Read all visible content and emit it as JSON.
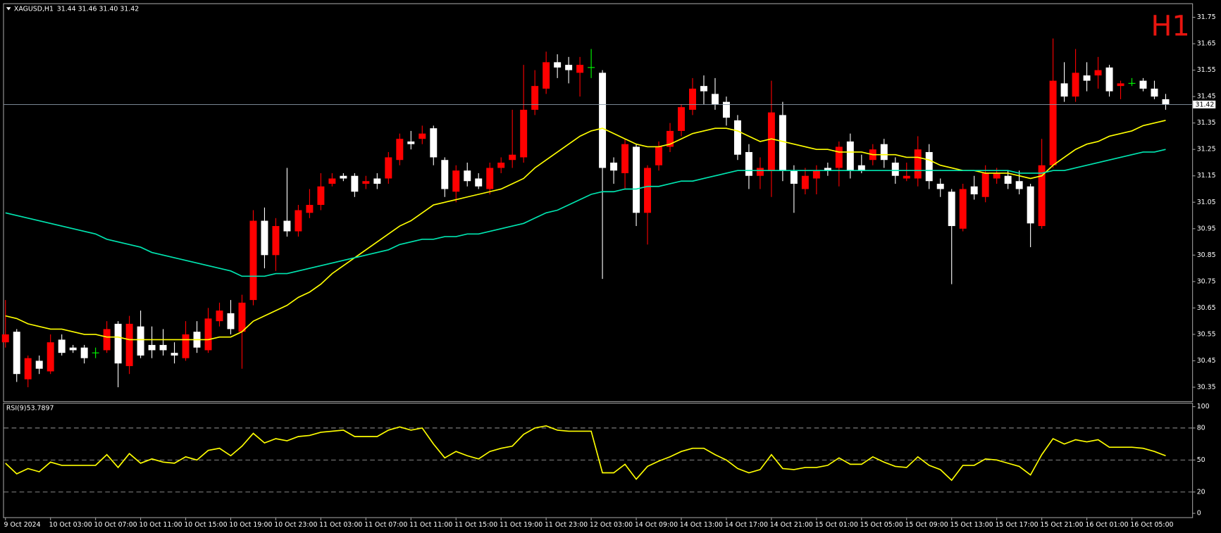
{
  "chart_data": [
    {
      "type": "candlestick",
      "title": "XAGUSD,H1",
      "subtitle": "31.44 31.46 31.40 31.42",
      "annotation": "H1",
      "categories": [
        "9 Oct 2024",
        null,
        null,
        null,
        "10 Oct 03:00",
        null,
        null,
        null,
        "10 Oct 07:00",
        null,
        null,
        null,
        "10 Oct 11:00",
        null,
        null,
        null,
        "10 Oct 15:00",
        null,
        null,
        null,
        "10 Oct 19:00",
        null,
        null,
        null,
        "10 Oct 23:00",
        null,
        null,
        null,
        "11 Oct 03:00",
        null,
        null,
        null,
        "11 Oct 07:00",
        null,
        null,
        null,
        "11 Oct 11:00",
        null,
        null,
        null,
        "11 Oct 15:00",
        null,
        null,
        null,
        "11 Oct 19:00",
        null,
        null,
        null,
        "11 Oct 23:00",
        null,
        null,
        null,
        "12 Oct 03:00",
        null,
        null,
        null,
        "14 Oct 09:00",
        null,
        null,
        null,
        "14 Oct 13:00",
        null,
        null,
        null,
        "14 Oct 17:00",
        null,
        null,
        null,
        "14 Oct 21:00",
        null,
        null,
        null,
        "15 Oct 01:00",
        null,
        null,
        null,
        "15 Oct 05:00",
        null,
        null,
        null,
        "15 Oct 09:00",
        null,
        null,
        null,
        "15 Oct 13:00",
        null,
        null,
        null,
        "15 Oct 17:00",
        null,
        null,
        null,
        "15 Oct 21:00",
        null,
        null,
        null,
        "16 Oct 01:00",
        null,
        null,
        null,
        "16 Oct 05:00",
        null,
        null,
        null
      ],
      "open": [
        30.52,
        30.56,
        30.38,
        30.45,
        30.41,
        30.53,
        30.5,
        30.5,
        30.48,
        30.49,
        30.59,
        30.43,
        30.58,
        30.51,
        30.51,
        30.48,
        30.46,
        30.56,
        30.49,
        30.6,
        30.63,
        30.56,
        30.68,
        30.98,
        30.85,
        30.98,
        30.94,
        31.01,
        31.04,
        31.12,
        31.15,
        31.15,
        31.12,
        31.14,
        31.14,
        31.21,
        31.28,
        31.29,
        31.33,
        31.21,
        31.09,
        31.17,
        31.14,
        31.1,
        31.18,
        31.21,
        31.22,
        31.4,
        31.48,
        31.58,
        31.57,
        31.54,
        31.56,
        31.54,
        31.2,
        31.16,
        31.26,
        31.01,
        31.19,
        31.26,
        31.32,
        31.4,
        31.49,
        31.46,
        31.43,
        31.36,
        31.24,
        31.15,
        31.17,
        31.38,
        31.17,
        31.1,
        31.14,
        31.18,
        31.18,
        31.28,
        31.19,
        31.21,
        31.27,
        31.2,
        31.14,
        31.14,
        31.24,
        31.12,
        31.09,
        30.95,
        31.11,
        31.07,
        31.14,
        31.15,
        31.13,
        31.11,
        30.96,
        31.19,
        31.5,
        31.45,
        31.53,
        31.53,
        31.56,
        31.49,
        31.5,
        31.51,
        31.48,
        31.44
      ],
      "high": [
        30.68,
        30.57,
        30.47,
        30.47,
        30.55,
        30.55,
        30.51,
        30.51,
        30.5,
        30.6,
        30.6,
        30.62,
        30.64,
        30.58,
        30.57,
        30.52,
        30.6,
        30.6,
        30.65,
        30.67,
        30.68,
        30.7,
        31.02,
        31.03,
        30.99,
        31.18,
        31.04,
        31.1,
        31.16,
        31.16,
        31.16,
        31.16,
        31.15,
        31.16,
        31.24,
        31.31,
        31.32,
        31.34,
        31.34,
        31.22,
        31.19,
        31.2,
        31.16,
        31.2,
        31.22,
        31.4,
        31.57,
        31.55,
        31.62,
        31.61,
        31.6,
        31.6,
        31.63,
        31.55,
        31.22,
        31.29,
        31.27,
        31.19,
        31.28,
        31.35,
        31.42,
        31.52,
        31.53,
        31.52,
        31.45,
        31.38,
        31.27,
        31.22,
        31.51,
        31.43,
        31.19,
        31.18,
        31.19,
        31.2,
        31.28,
        31.31,
        31.23,
        31.27,
        31.29,
        31.22,
        31.2,
        31.3,
        31.27,
        31.14,
        31.1,
        31.12,
        31.15,
        31.19,
        31.18,
        31.17,
        31.17,
        31.12,
        31.29,
        31.67,
        31.58,
        31.63,
        31.58,
        31.6,
        31.57,
        31.51,
        31.52,
        31.52,
        31.51,
        31.46
      ],
      "low": [
        30.5,
        30.37,
        30.35,
        30.4,
        30.4,
        30.47,
        30.48,
        30.44,
        30.46,
        30.48,
        30.35,
        30.4,
        30.46,
        30.46,
        30.47,
        30.44,
        30.45,
        30.48,
        30.48,
        30.58,
        30.55,
        30.42,
        30.66,
        30.8,
        30.79,
        30.92,
        30.92,
        30.99,
        31.02,
        31.11,
        31.13,
        31.07,
        31.1,
        31.1,
        31.12,
        31.19,
        31.25,
        31.27,
        31.19,
        31.07,
        31.05,
        31.11,
        31.1,
        31.08,
        31.16,
        31.18,
        31.2,
        31.38,
        31.46,
        31.52,
        31.5,
        31.45,
        31.52,
        30.76,
        31.12,
        31.1,
        30.96,
        30.89,
        31.17,
        31.24,
        31.3,
        31.38,
        31.42,
        31.4,
        31.34,
        31.21,
        31.1,
        31.1,
        31.07,
        31.13,
        31.01,
        31.08,
        31.08,
        31.15,
        31.11,
        31.14,
        31.16,
        31.19,
        31.18,
        31.12,
        31.13,
        31.11,
        31.1,
        31.07,
        30.74,
        30.94,
        31.06,
        31.05,
        31.12,
        31.1,
        31.08,
        30.88,
        30.95,
        31.18,
        31.43,
        31.43,
        31.47,
        31.48,
        31.45,
        31.44,
        31.49,
        31.47,
        31.44,
        31.4
      ],
      "close": [
        30.55,
        30.4,
        30.46,
        30.42,
        30.52,
        30.48,
        30.49,
        30.46,
        30.48,
        30.57,
        30.44,
        30.59,
        30.47,
        30.49,
        30.49,
        30.47,
        30.55,
        30.5,
        30.61,
        30.64,
        30.57,
        30.67,
        30.98,
        30.85,
        30.96,
        30.94,
        31.02,
        31.04,
        31.11,
        31.14,
        31.14,
        31.09,
        31.13,
        31.12,
        31.22,
        31.29,
        31.27,
        31.31,
        31.22,
        31.1,
        31.17,
        31.13,
        31.11,
        31.18,
        31.2,
        31.23,
        31.4,
        31.49,
        31.58,
        31.56,
        31.55,
        31.57,
        31.56,
        31.18,
        31.17,
        31.27,
        31.01,
        31.18,
        31.26,
        31.32,
        31.41,
        31.48,
        31.47,
        31.42,
        31.37,
        31.23,
        31.15,
        31.18,
        31.39,
        31.17,
        31.12,
        31.15,
        31.17,
        31.17,
        31.26,
        31.17,
        31.17,
        31.25,
        31.21,
        31.15,
        31.15,
        31.25,
        31.13,
        31.1,
        30.96,
        31.1,
        31.08,
        31.16,
        31.16,
        31.12,
        31.1,
        30.97,
        31.19,
        31.51,
        31.45,
        31.54,
        31.51,
        31.55,
        31.47,
        31.5,
        31.5,
        31.48,
        31.45,
        31.42
      ],
      "up_color": "#ff0000",
      "down_color": "#ffffff",
      "doji_color": "#00ff00",
      "overlays": [
        {
          "color": "#ffff00",
          "values": [
            30.62,
            30.61,
            30.59,
            30.58,
            30.57,
            30.57,
            30.56,
            30.55,
            30.55,
            30.54,
            30.54,
            30.53,
            30.53,
            30.53,
            30.53,
            30.53,
            30.53,
            30.53,
            30.53,
            30.54,
            30.54,
            30.56,
            30.6,
            30.62,
            30.64,
            30.66,
            30.69,
            30.71,
            30.74,
            30.78,
            30.81,
            30.84,
            30.87,
            30.9,
            30.93,
            30.96,
            30.98,
            31.01,
            31.04,
            31.05,
            31.06,
            31.07,
            31.08,
            31.09,
            31.1,
            31.12,
            31.14,
            31.18,
            31.21,
            31.24,
            31.27,
            31.3,
            31.32,
            31.33,
            31.31,
            31.29,
            31.27,
            31.26,
            31.26,
            31.27,
            31.29,
            31.31,
            31.32,
            31.33,
            31.33,
            31.32,
            31.3,
            31.28,
            31.29,
            31.28,
            31.27,
            31.26,
            31.25,
            31.25,
            31.24,
            31.24,
            31.24,
            31.23,
            31.23,
            31.23,
            31.22,
            31.22,
            31.21,
            31.19,
            31.18,
            31.17,
            31.17,
            31.16,
            31.16,
            31.16,
            31.15,
            31.14,
            31.15,
            31.19,
            31.22,
            31.25,
            31.27,
            31.28,
            31.3,
            31.31,
            31.32,
            31.34,
            31.35,
            31.36
          ]
        },
        {
          "color": "#00e5b0",
          "values": [
            31.01,
            31.0,
            30.99,
            30.98,
            30.97,
            30.96,
            30.95,
            30.94,
            30.93,
            30.91,
            30.9,
            30.89,
            30.88,
            30.86,
            30.85,
            30.84,
            30.83,
            30.82,
            30.81,
            30.8,
            30.79,
            30.77,
            30.77,
            30.77,
            30.78,
            30.78,
            30.79,
            30.8,
            30.81,
            30.82,
            30.83,
            30.84,
            30.85,
            30.86,
            30.87,
            30.89,
            30.9,
            30.91,
            30.91,
            30.92,
            30.92,
            30.93,
            30.93,
            30.94,
            30.95,
            30.96,
            30.97,
            30.99,
            31.01,
            31.02,
            31.04,
            31.06,
            31.08,
            31.09,
            31.09,
            31.1,
            31.1,
            31.11,
            31.11,
            31.12,
            31.13,
            31.13,
            31.14,
            31.15,
            31.16,
            31.17,
            31.17,
            31.17,
            31.17,
            31.17,
            31.17,
            31.17,
            31.17,
            31.17,
            31.17,
            31.17,
            31.17,
            31.17,
            31.17,
            31.17,
            31.17,
            31.17,
            31.17,
            31.17,
            31.17,
            31.17,
            31.17,
            31.17,
            31.17,
            31.17,
            31.16,
            31.16,
            31.16,
            31.17,
            31.17,
            31.18,
            31.19,
            31.2,
            31.21,
            31.22,
            31.23,
            31.24,
            31.24,
            31.25
          ]
        }
      ],
      "current_price": 31.42,
      "current_price_color": "#8a9aa8",
      "ylim": [
        30.3,
        31.8
      ],
      "yticks": [
        31.75,
        31.65,
        31.55,
        31.45,
        31.35,
        31.25,
        31.15,
        31.05,
        30.95,
        30.85,
        30.75,
        30.65,
        30.55,
        30.45,
        30.35
      ],
      "grid": false
    },
    {
      "type": "line",
      "title": "RSI(9)",
      "subtitle": 53.7897,
      "color": "#ffff00",
      "values": [
        47,
        37,
        42,
        39,
        48,
        45,
        45,
        45,
        45,
        55,
        43,
        56,
        47,
        51,
        48,
        47,
        53,
        50,
        59,
        61,
        54,
        63,
        75,
        66,
        70,
        68,
        72,
        73,
        76,
        77,
        78,
        72,
        72,
        72,
        78,
        81,
        78,
        80,
        65,
        52,
        58,
        54,
        51,
        58,
        61,
        63,
        74,
        80,
        82,
        78,
        77,
        77,
        77,
        38,
        38,
        46,
        32,
        44,
        49,
        53,
        58,
        61,
        61,
        55,
        50,
        42,
        38,
        41,
        55,
        42,
        41,
        43,
        43,
        45,
        52,
        46,
        46,
        53,
        48,
        44,
        43,
        53,
        45,
        41,
        31,
        45,
        45,
        51,
        50,
        47,
        44,
        36,
        55,
        70,
        65,
        69,
        67,
        69,
        62,
        62,
        62,
        61,
        58,
        54
      ],
      "ylim": [
        0,
        100
      ],
      "yticks": [
        0,
        20,
        50,
        80,
        100
      ],
      "levels": [
        20,
        50,
        80
      ],
      "grid": false
    }
  ]
}
